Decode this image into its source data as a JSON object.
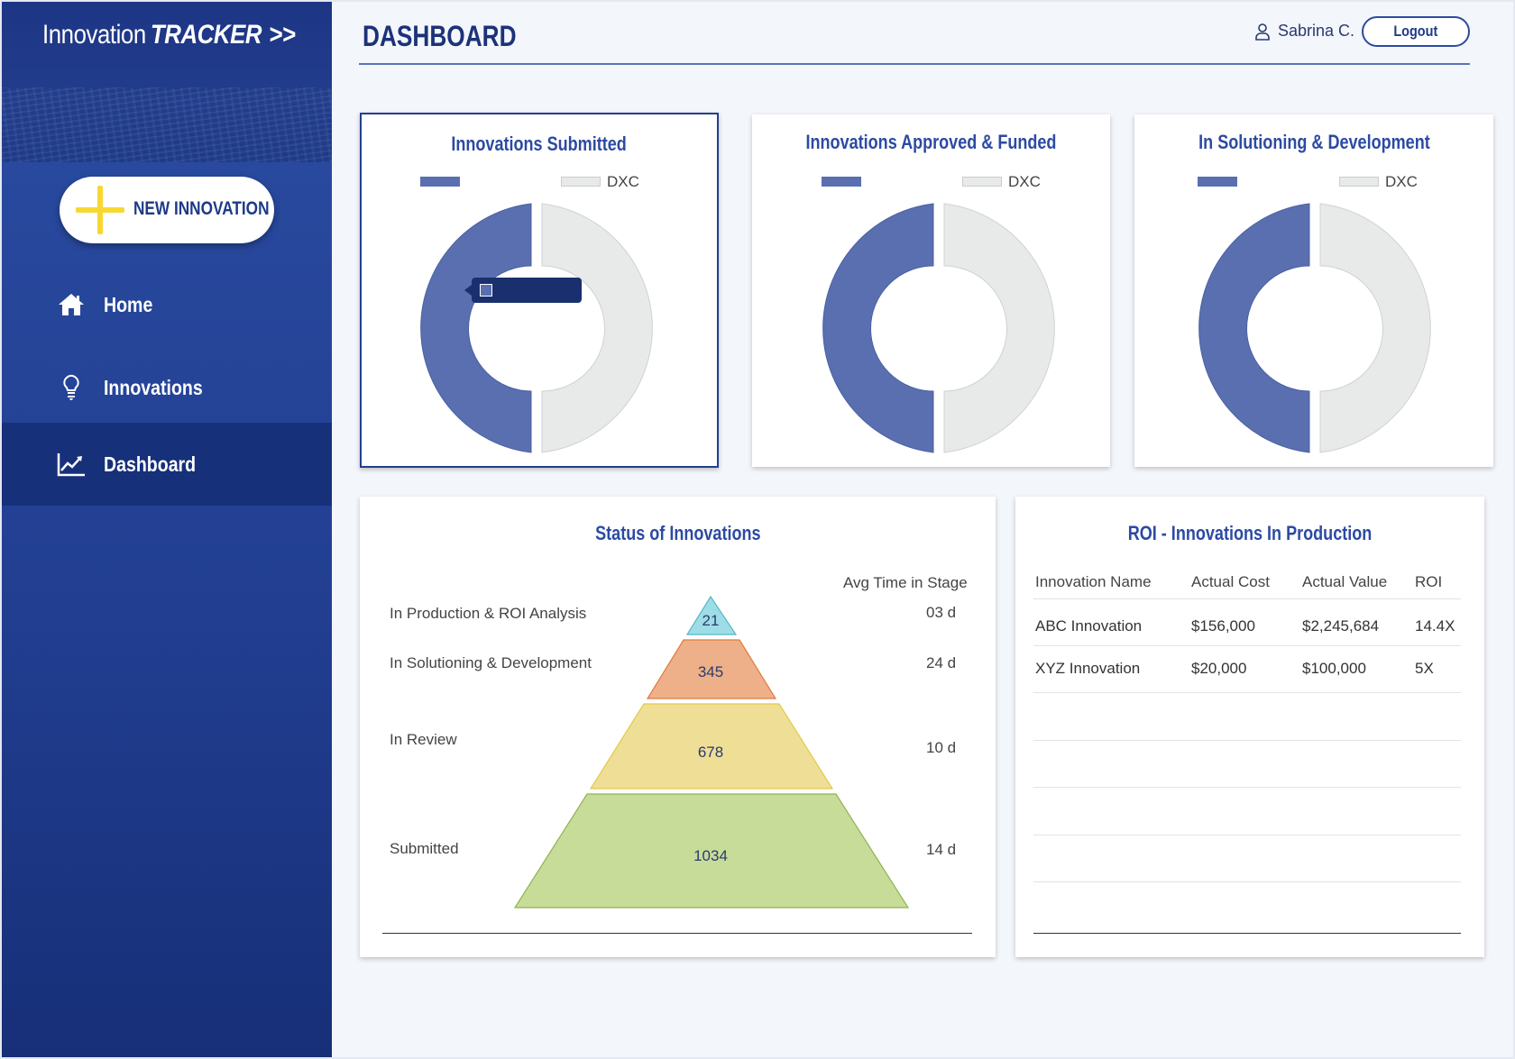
{
  "app": {
    "brand_part1": "Innovation",
    "brand_part2": "TRACKER",
    "brand_part3": ">>"
  },
  "sidebar": {
    "new_button_label": "NEW INNOVATION",
    "items": [
      {
        "label": "Home",
        "icon": "home-icon",
        "active": false
      },
      {
        "label": "Innovations",
        "icon": "lightbulb-icon",
        "active": false
      },
      {
        "label": "Dashboard",
        "icon": "chart-line-icon",
        "active": true
      }
    ]
  },
  "header": {
    "title": "DASHBOARD",
    "user_name": "Sabrina C.",
    "user_icon": "user-icon",
    "logout_label": "Logout"
  },
  "colors": {
    "primary": "#233f90",
    "donut_primary": "#5a6fb0",
    "donut_secondary": "#e8eaea"
  },
  "donut_cards": [
    {
      "title": "Innovations Submitted",
      "legend_label_1": "",
      "legend_label_2": "DXC",
      "selected": true
    },
    {
      "title": "Innovations Approved & Funded",
      "legend_label_1": "",
      "legend_label_2": "DXC",
      "selected": false
    },
    {
      "title": "In Solutioning & Development",
      "legend_label_1": "",
      "legend_label_2": "DXC",
      "selected": false
    }
  ],
  "status": {
    "title": "Status of Innovations",
    "avg_time_header": "Avg Time in Stage",
    "stages": [
      {
        "label": "In Production & ROI Analysis",
        "value": "21",
        "time": "03 d",
        "color": "#9fdde6"
      },
      {
        "label": "In Solutioning & Development",
        "value": "345",
        "time": "24 d",
        "color": "#eeb088"
      },
      {
        "label": "In Review",
        "value": "678",
        "time": "10 d",
        "color": "#efdf96"
      },
      {
        "label": "Submitted",
        "value": "1034",
        "time": "14 d",
        "color": "#c8dc9a"
      }
    ]
  },
  "roi": {
    "title": "ROI - Innovations In Production",
    "columns": [
      "Innovation Name",
      "Actual Cost",
      "Actual Value",
      "ROI"
    ],
    "rows": [
      [
        "ABC Innovation",
        "$156,000",
        "$2,245,684",
        "14.4X"
      ],
      [
        "XYZ Innovation",
        "$20,000",
        "$100,000",
        "5X"
      ]
    ]
  }
}
